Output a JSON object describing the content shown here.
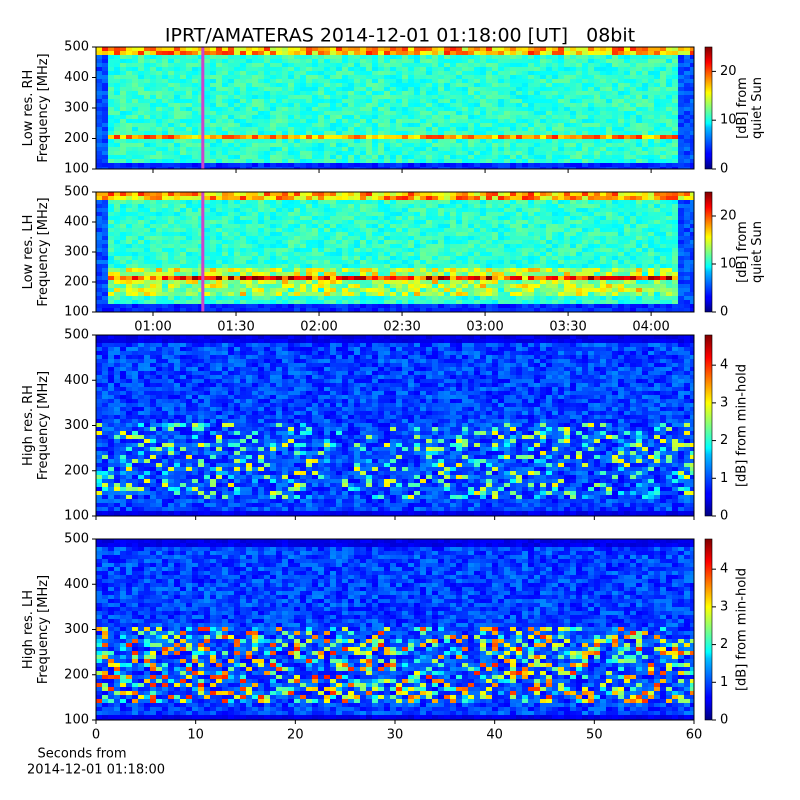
{
  "chart_data": [
    {
      "type": "heatmap",
      "title": "IPRT/AMATERAS 2014-12-01 01:18:00 [UT]   08bit",
      "ylabel": [
        "Low res. RH",
        "Frequency [MHz]"
      ],
      "ylim": [
        100,
        500
      ],
      "yticks": [
        100,
        200,
        300,
        400,
        500
      ],
      "xlim": [
        39.4,
        255.5
      ],
      "xticks": [
        60,
        90,
        120,
        150,
        180,
        210,
        240
      ],
      "marker_x": 78,
      "marker_color": "#cc44cc",
      "colormap": "jet",
      "colorbar": {
        "label": [
          "[dB] from",
          "quiet Sun"
        ],
        "lim": [
          0,
          25
        ],
        "ticks": [
          0,
          10,
          20
        ]
      }
    },
    {
      "type": "heatmap",
      "ylabel": [
        "Low res. LH",
        "Frequency [MHz]"
      ],
      "ylim": [
        100,
        500
      ],
      "yticks": [
        100,
        200,
        300,
        400,
        500
      ],
      "xlim": [
        39.4,
        255.5
      ],
      "xticks": [
        {
          "value": 60,
          "label": "01:00"
        },
        {
          "value": 90,
          "label": "01:30"
        },
        {
          "value": 120,
          "label": "02:00"
        },
        {
          "value": 150,
          "label": "02:30"
        },
        {
          "value": 180,
          "label": "03:00"
        },
        {
          "value": 210,
          "label": "03:30"
        },
        {
          "value": 240,
          "label": "04:00"
        }
      ],
      "marker_x": 78,
      "marker_color": "#cc44cc",
      "colormap": "jet",
      "colorbar": {
        "label": [
          "[dB] from",
          "quiet Sun"
        ],
        "lim": [
          0,
          25
        ],
        "ticks": [
          0,
          10,
          20
        ]
      }
    },
    {
      "type": "heatmap",
      "ylabel": [
        "High res. RH",
        "Frequency [MHz]"
      ],
      "ylim": [
        100,
        500
      ],
      "yticks": [
        100,
        200,
        300,
        400,
        500
      ],
      "xlim": [
        0,
        60
      ],
      "xticks": [
        0,
        10,
        20,
        30,
        40,
        50,
        60
      ],
      "colormap": "jet",
      "colorbar": {
        "label": [
          "[dB] from min-hold"
        ],
        "lim": [
          0,
          4.8
        ],
        "ticks": [
          0,
          1,
          2,
          3,
          4
        ]
      }
    },
    {
      "type": "heatmap",
      "ylabel": [
        "High res. LH",
        "Frequency [MHz]"
      ],
      "ylim": [
        100,
        500
      ],
      "yticks": [
        100,
        200,
        300,
        400,
        500
      ],
      "xlim": [
        0,
        60
      ],
      "xticks": [
        0,
        10,
        20,
        30,
        40,
        50,
        60
      ],
      "xtick_labels": true,
      "xlabel": [
        "Seconds from",
        "2014-12-01 01:18:00"
      ],
      "colormap": "jet",
      "colorbar": {
        "label": [
          "[dB] from min-hold"
        ],
        "lim": [
          0,
          4.8
        ],
        "ticks": [
          0,
          1,
          2,
          3,
          4
        ]
      }
    }
  ]
}
